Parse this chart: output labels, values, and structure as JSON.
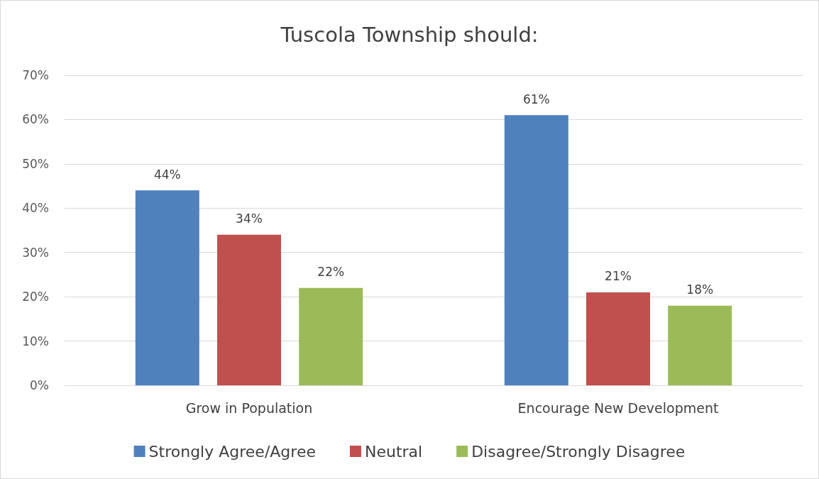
{
  "chart_data": {
    "type": "bar",
    "title": "Tuscola Township should:",
    "categories": [
      "Grow in Population",
      "Encourage New Development"
    ],
    "series": [
      {
        "name": "Strongly Agree/Agree",
        "color": "#4f81bd",
        "values": [
          44,
          61
        ],
        "value_labels": [
          "44%",
          "61%"
        ]
      },
      {
        "name": "Neutral",
        "color": "#c0504d",
        "values": [
          34,
          21
        ],
        "value_labels": [
          "34%",
          "21%"
        ]
      },
      {
        "name": "Disagree/Strongly Disagree",
        "color": "#9bbb59",
        "values": [
          22,
          18
        ],
        "value_labels": [
          "22%",
          "18%"
        ]
      }
    ],
    "ylim": [
      0,
      70
    ],
    "yticks": [
      {
        "value": 0,
        "label": "0%"
      },
      {
        "value": 10,
        "label": "10%"
      },
      {
        "value": 20,
        "label": "20%"
      },
      {
        "value": 30,
        "label": "30%"
      },
      {
        "value": 40,
        "label": "40%"
      },
      {
        "value": 50,
        "label": "50%"
      },
      {
        "value": 60,
        "label": "60%"
      },
      {
        "value": 70,
        "label": "70%"
      }
    ],
    "grid": "y",
    "legend": "bottom"
  }
}
